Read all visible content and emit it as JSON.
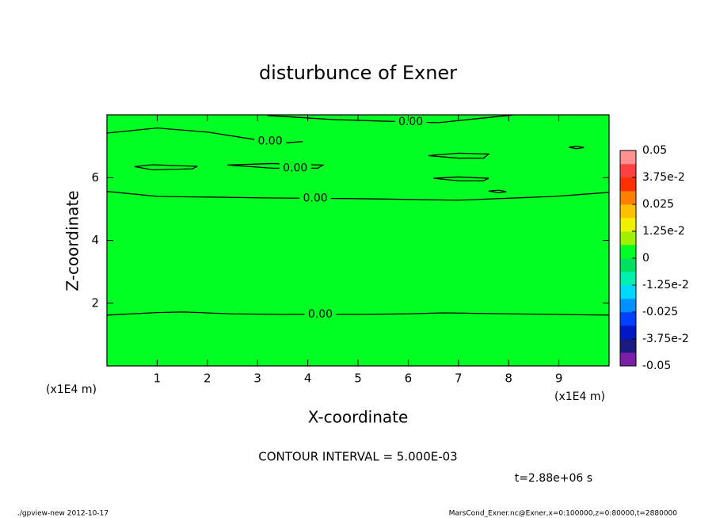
{
  "chart_data": {
    "type": "contour",
    "title": "disturbunce of Exner",
    "x_label": "X-coordinate",
    "y_label": "Z-coordinate",
    "x_unit": "(x1E4 m)",
    "y_unit": "(x1E4 m)",
    "xlim": [
      0,
      10
    ],
    "ylim": [
      0,
      8
    ],
    "xticks": [
      1,
      2,
      3,
      4,
      5,
      6,
      7,
      8,
      9
    ],
    "yticks": [
      2,
      4,
      6
    ],
    "field_color": "#00ff22",
    "line_color": "#000000",
    "contours": [
      {
        "label": "0.00",
        "x": [
          0,
          1,
          1.5,
          2.5,
          3.5,
          5,
          6,
          6.7,
          8,
          10
        ],
        "y": [
          1.62,
          1.7,
          1.72,
          1.66,
          1.64,
          1.64,
          1.66,
          1.69,
          1.66,
          1.62
        ]
      },
      {
        "label": "0.00",
        "x": [
          0,
          1.02,
          2,
          3.3,
          5,
          7,
          8.9,
          10
        ],
        "y": [
          5.56,
          5.4,
          5.38,
          5.35,
          5.33,
          5.28,
          5.4,
          5.53
        ]
      },
      {
        "label": "0.00",
        "x": [
          0,
          1,
          2,
          3,
          3.5,
          3.9
        ],
        "y": [
          7.42,
          7.58,
          7.45,
          7.2,
          7.1,
          7.15
        ]
      },
      {
        "label": "0.00",
        "x": [
          3.2,
          4.5,
          5.5,
          6.6,
          8.1
        ],
        "y": [
          7.98,
          7.85,
          7.8,
          7.75,
          8
        ]
      },
      {
        "x": [
          0.55,
          0.9,
          1.8,
          1.7,
          0.9,
          0.55
        ],
        "y": [
          6.35,
          6.41,
          6.36,
          6.28,
          6.25,
          6.35
        ]
      },
      {
        "label": "0.00",
        "x": [
          2.4,
          3.3,
          4.3,
          4.2,
          3.3,
          2.4
        ],
        "y": [
          6.4,
          6.45,
          6.4,
          6.3,
          6.3,
          6.4
        ]
      },
      {
        "x": [
          6.4,
          7.0,
          7.6,
          7.5,
          7.0,
          6.4
        ],
        "y": [
          6.7,
          6.78,
          6.75,
          6.62,
          6.62,
          6.7
        ]
      },
      {
        "x": [
          6.5,
          7.0,
          7.6,
          7.5,
          7.0,
          6.5
        ],
        "y": [
          5.98,
          6.02,
          5.98,
          5.9,
          5.9,
          5.98
        ]
      },
      {
        "x": [
          7.6,
          7.8,
          7.95,
          7.8,
          7.6
        ],
        "y": [
          5.57,
          5.6,
          5.55,
          5.52,
          5.57
        ]
      },
      {
        "x": [
          9.2,
          9.35,
          9.5,
          9.35,
          9.2
        ],
        "y": [
          6.97,
          7.0,
          6.96,
          6.92,
          6.97
        ]
      }
    ],
    "colorbar": {
      "lim": [
        -0.05,
        0.05
      ],
      "ticks": [
        0.05,
        {
          "value": 0.0375,
          "label": "3.75e-2"
        },
        0.025,
        {
          "value": 0.0125,
          "label": "1.25e-2"
        },
        0,
        {
          "value": -0.0125,
          "label": "-1.25e-2"
        },
        -0.025,
        {
          "value": -0.0375,
          "label": "-3.75e-2"
        },
        -0.05
      ],
      "colors": [
        "#7a1fa8",
        "#1a1a80",
        "#0018c8",
        "#0040ff",
        "#0090ff",
        "#00d8ff",
        "#00f0b0",
        "#00e060",
        "#00ff22",
        "#a0f000",
        "#f0f000",
        "#ffc000",
        "#ff8000",
        "#ff3000",
        "#ff4040",
        "#ff9090"
      ]
    },
    "interval_text": "CONTOUR INTERVAL = 5.000E-03",
    "time_text": "t=2.88e+06 s",
    "footer_left": "./gpview-new  2012-10-17",
    "footer_right": "MarsCond_Exner.nc@Exner,x=0:100000,z=0:80000,t=2880000"
  }
}
